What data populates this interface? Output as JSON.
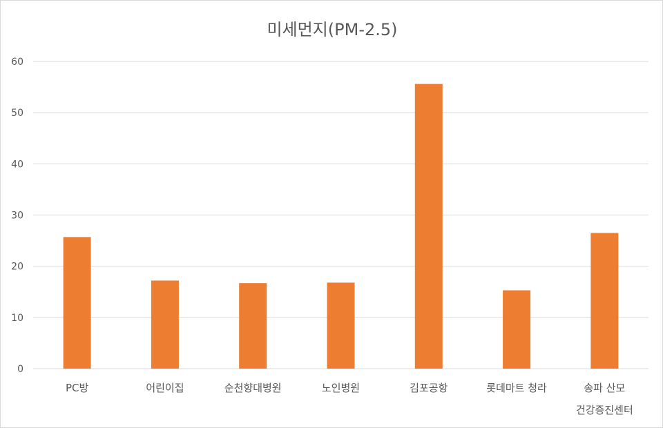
{
  "chart_data": {
    "type": "bar",
    "title": "미세먼지(PM-2.5)",
    "categories": [
      [
        "PC방"
      ],
      [
        "어린이집"
      ],
      [
        "순천향대병원"
      ],
      [
        "노인병원"
      ],
      [
        "김포공항"
      ],
      [
        "롯데마트 청라"
      ],
      [
        "송파 산모",
        "건강증진센터"
      ]
    ],
    "values": [
      25.7,
      17.2,
      16.7,
      16.8,
      55.6,
      15.3,
      26.5
    ],
    "ylim": [
      0,
      60
    ],
    "yticks": [
      0,
      10,
      20,
      30,
      40,
      50,
      60
    ],
    "grid": true,
    "legend": "none",
    "colors": {
      "bar": "#ED7D31",
      "grid": "#D9D9D9",
      "text": "#595959"
    }
  }
}
